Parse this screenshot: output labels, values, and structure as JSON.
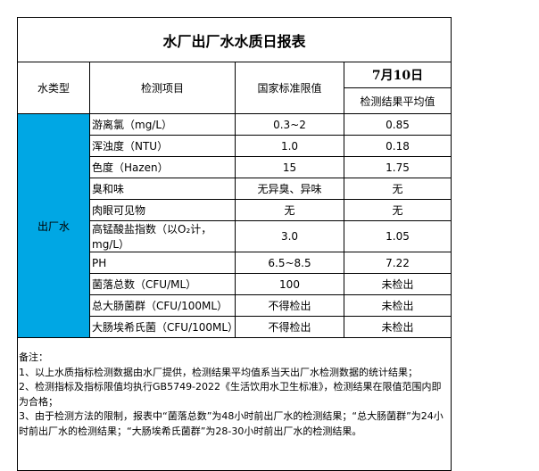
{
  "title": "水厂出厂水水质日报表",
  "headers": {
    "type": "水类型",
    "item": "检测项目",
    "standard": "国家标准限值",
    "date": "7月10日",
    "result": "检测结果平均值"
  },
  "water_type": "出厂水",
  "type_color": "#00a7e4",
  "rows": [
    {
      "item": "游离氯（mg/L）",
      "standard": "0.3~2",
      "result": "0.85"
    },
    {
      "item": "浑浊度（NTU）",
      "standard": "1.0",
      "result": "0.18"
    },
    {
      "item": "色度（Hazen）",
      "standard": "15",
      "result": "1.75"
    },
    {
      "item": "臭和味",
      "standard": "无异臭、异味",
      "result": "无"
    },
    {
      "item": "肉眼可见物",
      "standard": "无",
      "result": "无"
    },
    {
      "item": "高锰酸盐指数（以O₂计，mg/L）",
      "standard": "3.0",
      "result": "1.05"
    },
    {
      "item": "PH",
      "standard": "6.5~8.5",
      "result": "7.22"
    },
    {
      "item": "菌落总数（CFU/ML）",
      "standard": "100",
      "result": "未检出"
    },
    {
      "item": "总大肠菌群（CFU/100ML）",
      "standard": "不得检出",
      "result": "未检出"
    },
    {
      "item": "大肠埃希氏菌（CFU/100ML）",
      "standard": "不得检出",
      "result": "未检出"
    }
  ],
  "notes": [
    "备注：",
    "1、以上水质指标检测数据由水厂提供，检测结果平均值系当天出厂水检测数据的统计结果；",
    "2、检测指标及指标限值均执行GB5749-2022《生活饮用水卫生标准》，检测结果在限值范围内即为合格；",
    "3、由于检测方法的限制，报表中“菌落总数”为48小时前出厂水的检测结果；“总大肠菌群”为24小时前出厂水的检测结果；“大肠埃希氏菌群”为28-30小时前出厂水的检测结果。"
  ]
}
